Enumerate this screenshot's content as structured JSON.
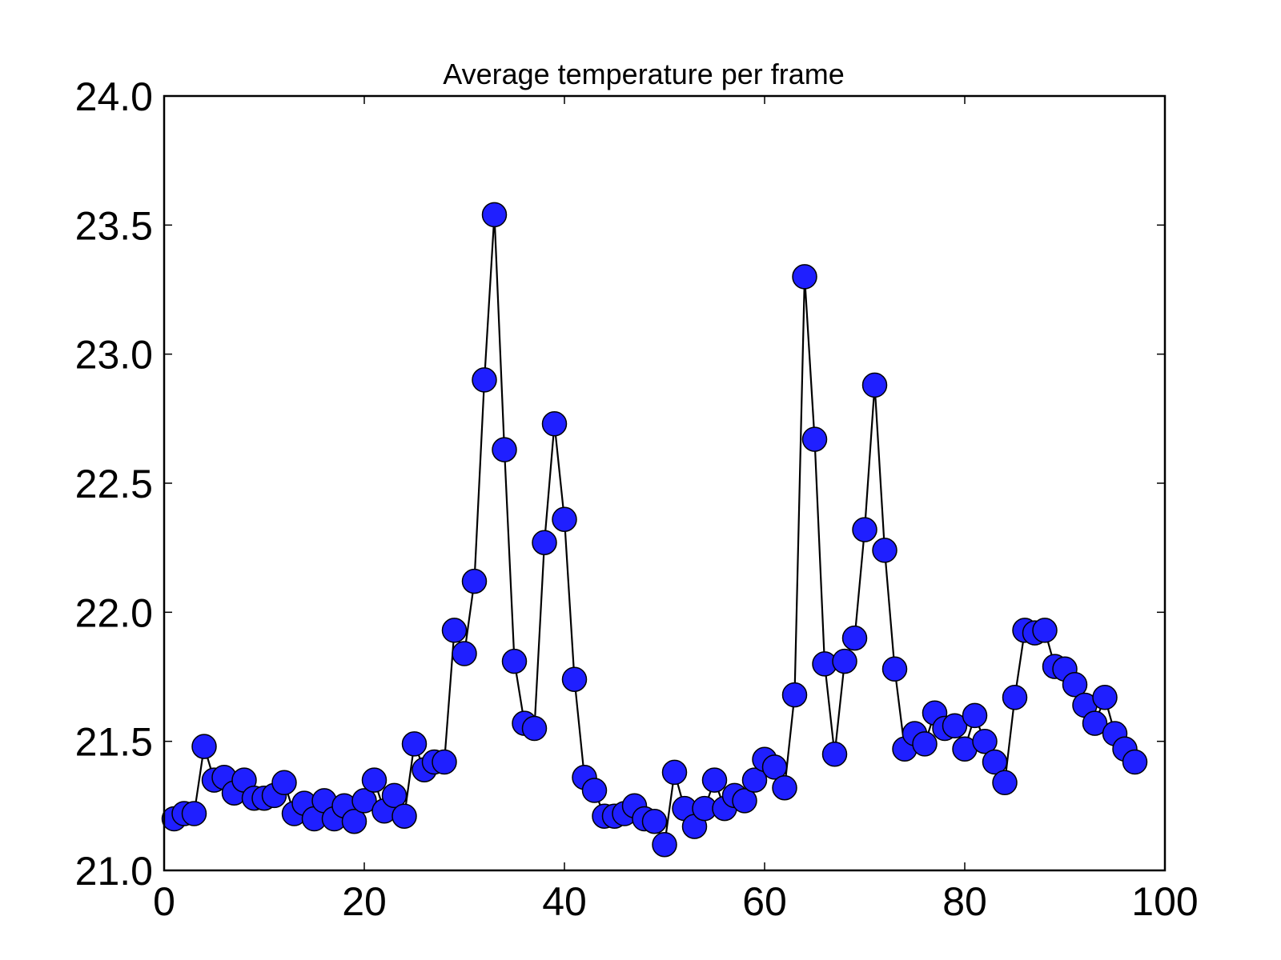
{
  "chart_data": {
    "type": "line",
    "title": "Average temperature per frame",
    "xlabel": "",
    "ylabel": "",
    "xlim": [
      0,
      100
    ],
    "ylim": [
      21.0,
      24.0
    ],
    "xticks": [
      0,
      20,
      40,
      60,
      80,
      100
    ],
    "yticks": [
      21.0,
      21.5,
      22.0,
      22.5,
      23.0,
      23.5,
      24.0
    ],
    "xtick_labels": [
      "0",
      "20",
      "40",
      "60",
      "80",
      "100"
    ],
    "ytick_labels": [
      "21.0",
      "21.5",
      "22.0",
      "22.5",
      "23.0",
      "23.5",
      "24.0"
    ],
    "grid": false,
    "legend": "none",
    "colors": {
      "marker_fill": "#1f1fff",
      "line": "#000000",
      "axes": "#000000"
    },
    "series": [
      {
        "marker": "circle",
        "x": [
          1,
          2,
          3,
          4,
          5,
          6,
          7,
          8,
          9,
          10,
          11,
          12,
          13,
          14,
          15,
          16,
          17,
          18,
          19,
          20,
          21,
          22,
          23,
          24,
          25,
          26,
          27,
          28,
          29,
          30,
          31,
          32,
          33,
          34,
          35,
          36,
          37,
          38,
          39,
          40,
          41,
          42,
          43,
          44,
          45,
          46,
          47,
          48,
          49,
          50,
          51,
          52,
          53,
          54,
          55,
          56,
          57,
          58,
          59,
          60,
          61,
          62,
          63,
          64,
          65,
          66,
          67,
          68,
          69,
          70,
          71,
          72,
          73,
          74,
          75,
          76,
          77,
          78,
          79,
          80,
          81,
          82,
          83,
          84,
          85,
          86,
          87,
          88,
          89,
          90,
          91,
          92,
          93,
          94,
          95,
          96,
          97
        ],
        "y": [
          21.2,
          21.22,
          21.22,
          21.48,
          21.35,
          21.36,
          21.3,
          21.35,
          21.28,
          21.28,
          21.29,
          21.34,
          21.22,
          21.26,
          21.2,
          21.27,
          21.2,
          21.25,
          21.19,
          21.27,
          21.35,
          21.23,
          21.29,
          21.21,
          21.49,
          21.39,
          21.42,
          21.42,
          21.93,
          21.84,
          22.12,
          22.9,
          23.54,
          22.63,
          21.81,
          21.57,
          21.55,
          22.27,
          22.73,
          22.36,
          21.74,
          21.36,
          21.31,
          21.21,
          21.21,
          21.22,
          21.25,
          21.2,
          21.19,
          21.1,
          21.38,
          21.24,
          21.17,
          21.24,
          21.35,
          21.24,
          21.29,
          21.27,
          21.35,
          21.43,
          21.4,
          21.32,
          21.68,
          23.3,
          22.67,
          21.8,
          21.45,
          21.81,
          21.9,
          22.32,
          22.88,
          22.24,
          21.78,
          21.47,
          21.53,
          21.49,
          21.61,
          21.55,
          21.56,
          21.47,
          21.6,
          21.5,
          21.42,
          21.34,
          21.67,
          21.93,
          21.92,
          21.93,
          21.79,
          21.78,
          21.72,
          21.64,
          21.57,
          21.67,
          21.53,
          21.47,
          21.42
        ]
      }
    ]
  }
}
